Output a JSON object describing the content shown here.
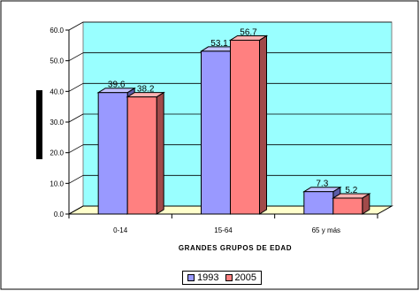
{
  "chart_data": {
    "type": "bar",
    "xlabel": "GRANDES GRUPOS DE EDAD",
    "ylabel": "",
    "ylim": [
      0,
      60
    ],
    "yticks": [
      "0.0",
      "10.0",
      "20.0",
      "30.0",
      "40.0",
      "50.0",
      "60.0"
    ],
    "categories": [
      "0-14",
      "15-64",
      "65 y más"
    ],
    "series": [
      {
        "name": "1993",
        "values": [
          39.6,
          53.1,
          7.3
        ],
        "labels": [
          "39.6",
          "53.1",
          "7.3"
        ]
      },
      {
        "name": "2005",
        "values": [
          38.2,
          56.7,
          5.2
        ],
        "labels": [
          "38.2",
          "56.7",
          "5.2"
        ]
      }
    ],
    "grid": true,
    "legend_position": "bottom",
    "colors": {
      "series_1993": "#9999ff",
      "series_1993_side": "#5c5ca8",
      "series_1993_top": "#c2c2ff",
      "series_2005": "#ff8080",
      "series_2005_side": "#a14a4a",
      "series_2005_top": "#ffb3b3",
      "plot_back": "#99ffff",
      "plot_floor": "#ffffcc"
    }
  }
}
